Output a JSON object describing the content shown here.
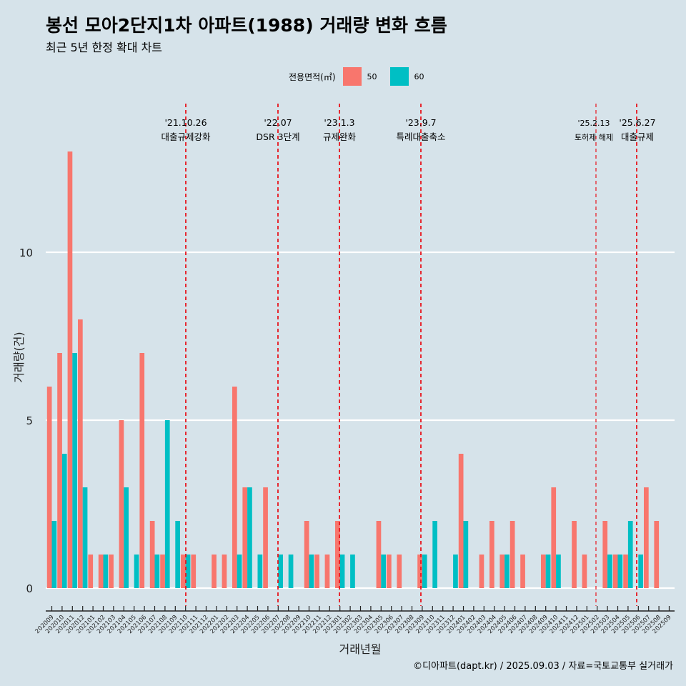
{
  "title": "봉선 모아2단지1차 아파트(1988) 거래량 변화 흐름",
  "subtitle": "최근 5년 한정 확대 차트",
  "caption": "©디아파트(dapt.kr) / 2025.09.03 / 자료=국토교통부 실거래가",
  "legend": {
    "title": "전용면적(㎡)",
    "items": [
      {
        "label": "50",
        "color": "#f8766d"
      },
      {
        "label": "60",
        "color": "#00bfc4"
      }
    ]
  },
  "chart_data": {
    "type": "bar",
    "xlabel": "거래년월",
    "ylabel": "거래량(건)",
    "ylim": [
      0,
      14
    ],
    "yticks": [
      0,
      5,
      10
    ],
    "grid": true,
    "legend_position": "top",
    "categories": [
      "202009",
      "202010",
      "202011",
      "202012",
      "202101",
      "202102",
      "202103",
      "202104",
      "202105",
      "202106",
      "202107",
      "202108",
      "202109",
      "202110",
      "202111",
      "202112",
      "202201",
      "202202",
      "202203",
      "202204",
      "202205",
      "202206",
      "202207",
      "202208",
      "202209",
      "202210",
      "202211",
      "202212",
      "202301",
      "202302",
      "202303",
      "202304",
      "202305",
      "202306",
      "202307",
      "202308",
      "202309",
      "202310",
      "202311",
      "202312",
      "202401",
      "202402",
      "202403",
      "202404",
      "202405",
      "202406",
      "202407",
      "202408",
      "202409",
      "202410",
      "202411",
      "202412",
      "202501",
      "202502",
      "202503",
      "202504",
      "202505",
      "202506",
      "202507",
      "202508",
      "202509"
    ],
    "series": [
      {
        "name": "50",
        "color": "#f8766d",
        "values": [
          6,
          7,
          13,
          8,
          1,
          1,
          1,
          5,
          0,
          7,
          2,
          1,
          0,
          1,
          1,
          0,
          1,
          1,
          6,
          3,
          0,
          3,
          0,
          0,
          0,
          2,
          1,
          1,
          2,
          0,
          0,
          0,
          2,
          1,
          1,
          0,
          1,
          0,
          0,
          0,
          4,
          0,
          1,
          2,
          1,
          2,
          1,
          0,
          1,
          3,
          0,
          2,
          1,
          0,
          2,
          1,
          1,
          0,
          3,
          2,
          0
        ]
      },
      {
        "name": "60",
        "color": "#00bfc4",
        "values": [
          2,
          4,
          7,
          3,
          0,
          1,
          0,
          3,
          1,
          0,
          1,
          5,
          2,
          1,
          0,
          0,
          0,
          0,
          1,
          3,
          1,
          0,
          1,
          1,
          0,
          1,
          0,
          0,
          1,
          1,
          0,
          0,
          1,
          0,
          0,
          0,
          1,
          2,
          0,
          1,
          2,
          0,
          0,
          0,
          1,
          0,
          0,
          0,
          1,
          1,
          0,
          0,
          0,
          0,
          1,
          1,
          2,
          1,
          0,
          0,
          0
        ]
      }
    ],
    "annotations": [
      {
        "date": "'21.10.26",
        "text": "대출규제강화"
      },
      {
        "date": "'22.07",
        "text": "DSR 3단계"
      },
      {
        "date": "'23.1.3",
        "text": "규제완화"
      },
      {
        "date": "'23.9.7",
        "text": "특례대출축소"
      },
      {
        "date": "'25.2.13",
        "text": "토허제 해제"
      },
      {
        "date": "'25.6.27",
        "text": "대출규제"
      }
    ]
  }
}
